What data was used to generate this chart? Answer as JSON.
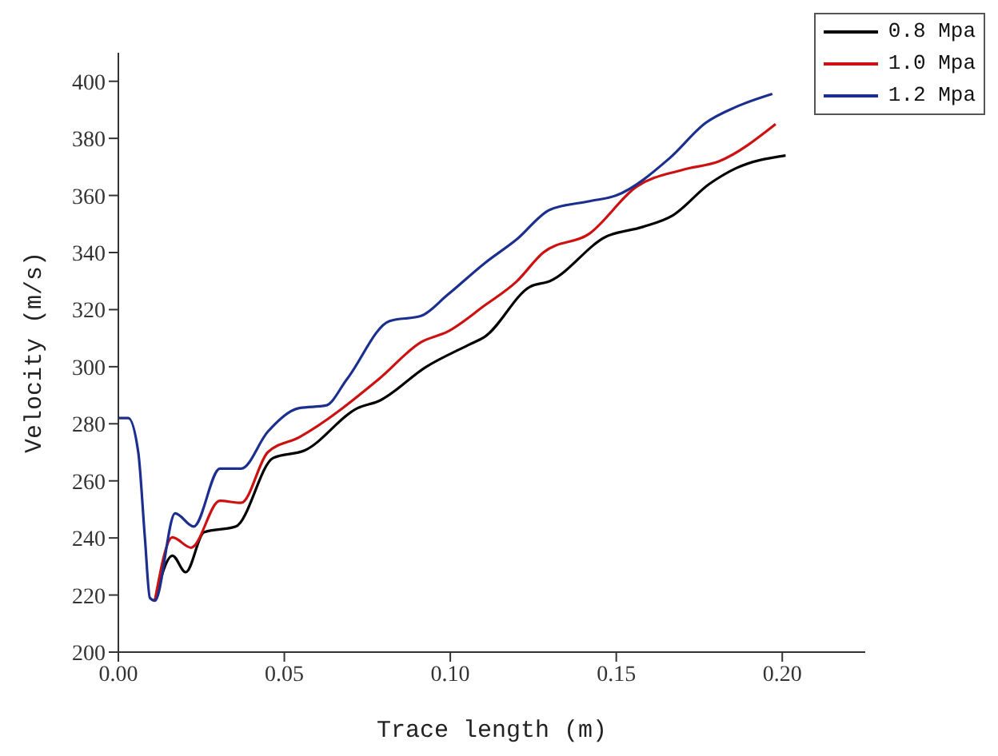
{
  "chart_data": {
    "type": "line",
    "xlabel": "Trace length (m)",
    "ylabel": "Velocity (m/s)",
    "xlim": [
      0,
      0.225
    ],
    "xticks": [
      {
        "value": 0,
        "label": "0.00"
      },
      {
        "value": 0.05,
        "label": "0.05"
      },
      {
        "value": 0.1,
        "label": "0.10"
      },
      {
        "value": 0.15,
        "label": "0.15"
      },
      {
        "value": 0.2,
        "label": "0.20"
      }
    ],
    "ylim": [
      200,
      410
    ],
    "yticks": [
      200,
      220,
      240,
      260,
      280,
      300,
      320,
      340,
      360,
      380,
      400
    ],
    "grid": false,
    "legend": "top right",
    "marker": "none",
    "line_style": "solid",
    "series": [
      {
        "name": "0.8 Mpa",
        "color": "#000000",
        "x": [
          0.011,
          0.0163,
          0.0203,
          0.0258,
          0.0354,
          0.0466,
          0.0562,
          0.0721,
          0.0785,
          0.0928,
          0.1056,
          0.1104,
          0.124,
          0.13,
          0.147,
          0.158,
          0.167,
          0.178,
          0.186,
          0.201
        ],
        "values": [
          218,
          233.8,
          228,
          242,
          244,
          268,
          270.7,
          285.5,
          288,
          300,
          307.7,
          310.5,
          328,
          330,
          345.6,
          349,
          353,
          364,
          369.5,
          374
        ]
      },
      {
        "name": "1.0 Mpa",
        "color": "#cc1111",
        "x": [
          0.011,
          0.0163,
          0.0219,
          0.0306,
          0.037,
          0.045,
          0.0545,
          0.0785,
          0.0912,
          0.0992,
          0.1104,
          0.12,
          0.128,
          0.142,
          0.156,
          0.17,
          0.181,
          0.198
        ],
        "values": [
          218,
          240.2,
          236.6,
          253,
          252.3,
          270,
          275.3,
          295.7,
          308.6,
          312.3,
          321.5,
          329.9,
          340,
          346.7,
          363,
          369,
          372,
          385
        ]
      },
      {
        "name": "1.2 Mpa",
        "color": "#1c2f8f",
        "x": [
          0,
          0.003,
          0.006,
          0.008,
          0.0095,
          0.011,
          0.0171,
          0.0227,
          0.0306,
          0.037,
          0.045,
          0.0545,
          0.0625,
          0.0689,
          0.0817,
          0.0912,
          0.0992,
          0.1104,
          0.12,
          0.13,
          0.142,
          0.15,
          0.166,
          0.177,
          0.186,
          0.197
        ],
        "values": [
          282,
          282,
          270,
          240,
          219,
          218,
          248.6,
          244,
          264.3,
          264.3,
          277.2,
          285.5,
          286.4,
          295.7,
          316,
          317.8,
          325.2,
          336.3,
          344.6,
          355,
          358,
          360,
          373,
          385.5,
          391,
          395.6
        ]
      }
    ]
  }
}
